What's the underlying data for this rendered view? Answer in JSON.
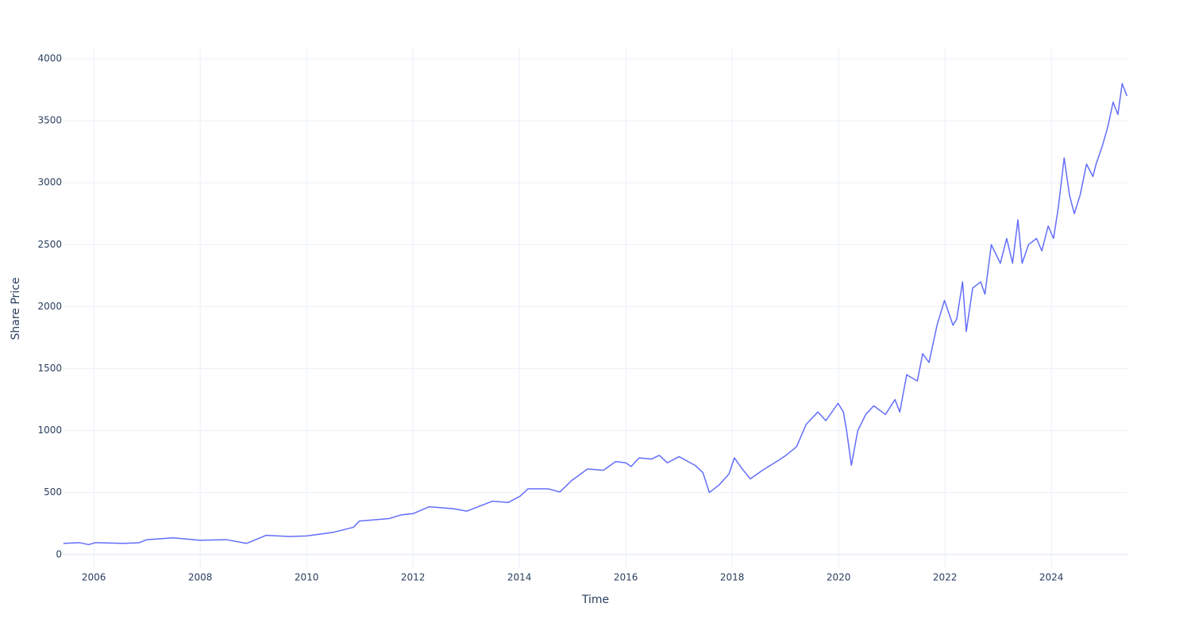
{
  "chart_data": {
    "type": "line",
    "x_label": "Time",
    "y_label": "Share Price",
    "x": [
      2005.43,
      2005.73,
      2005.9,
      2006.03,
      2006.55,
      2006.85,
      2007.0,
      2007.49,
      2008.0,
      2008.49,
      2008.87,
      2009.24,
      2009.69,
      2010.0,
      2010.51,
      2010.88,
      2010.99,
      2011.55,
      2011.78,
      2012.0,
      2012.3,
      2012.75,
      2013.01,
      2013.49,
      2013.79,
      2014.01,
      2014.16,
      2014.54,
      2014.76,
      2014.99,
      2015.28,
      2015.58,
      2015.81,
      2016.0,
      2016.1,
      2016.25,
      2016.48,
      2016.63,
      2016.78,
      2017.0,
      2017.3,
      2017.45,
      2017.57,
      2017.75,
      2017.94,
      2018.04,
      2018.19,
      2018.34,
      2018.57,
      2018.87,
      2019.01,
      2019.21,
      2019.39,
      2019.61,
      2019.76,
      2019.99,
      2020.09,
      2020.15,
      2020.24,
      2020.36,
      2020.51,
      2020.66,
      2020.88,
      2021.06,
      2021.15,
      2021.28,
      2021.48,
      2021.58,
      2021.7,
      2021.85,
      2021.99,
      2022.15,
      2022.22,
      2022.33,
      2022.4,
      2022.52,
      2022.67,
      2022.75,
      2022.87,
      2023.04,
      2023.16,
      2023.27,
      2023.37,
      2023.45,
      2023.57,
      2023.72,
      2023.82,
      2023.94,
      2024.04,
      2024.13,
      2024.24,
      2024.34,
      2024.43,
      2024.54,
      2024.66,
      2024.78,
      2024.84,
      2024.96,
      2025.06,
      2025.16,
      2025.25,
      2025.33,
      2025.42
    ],
    "series": [
      {
        "name": "Share Price",
        "color": "#636efa",
        "values": [
          90,
          96,
          80,
          96,
          90,
          95,
          120,
          135,
          115,
          120,
          90,
          155,
          145,
          150,
          180,
          220,
          270,
          290,
          320,
          330,
          385,
          370,
          350,
          430,
          420,
          470,
          530,
          530,
          505,
          600,
          690,
          680,
          750,
          740,
          710,
          780,
          770,
          800,
          740,
          790,
          720,
          660,
          500,
          560,
          650,
          780,
          690,
          610,
          680,
          760,
          800,
          870,
          1050,
          1150,
          1080,
          1220,
          1150,
          1000,
          720,
          1000,
          1130,
          1200,
          1130,
          1250,
          1150,
          1450,
          1400,
          1620,
          1550,
          1850,
          2050,
          1850,
          1900,
          2200,
          1800,
          2150,
          2200,
          2100,
          2500,
          2350,
          2550,
          2350,
          2700,
          2350,
          2500,
          2550,
          2450,
          2650,
          2550,
          2800,
          3200,
          2900,
          2750,
          2900,
          3150,
          3050,
          3150,
          3300,
          3450,
          3650,
          3550,
          3800,
          3700
        ]
      }
    ],
    "xlim": [
      2005.43,
      2025.43
    ],
    "ylim": [
      -110,
      4080
    ],
    "xticks": [
      2006,
      2008,
      2010,
      2012,
      2014,
      2016,
      2018,
      2020,
      2022,
      2024
    ],
    "yticks": [
      0,
      500,
      1000,
      1500,
      2000,
      2500,
      3000,
      3500,
      4000
    ],
    "grid": true
  }
}
